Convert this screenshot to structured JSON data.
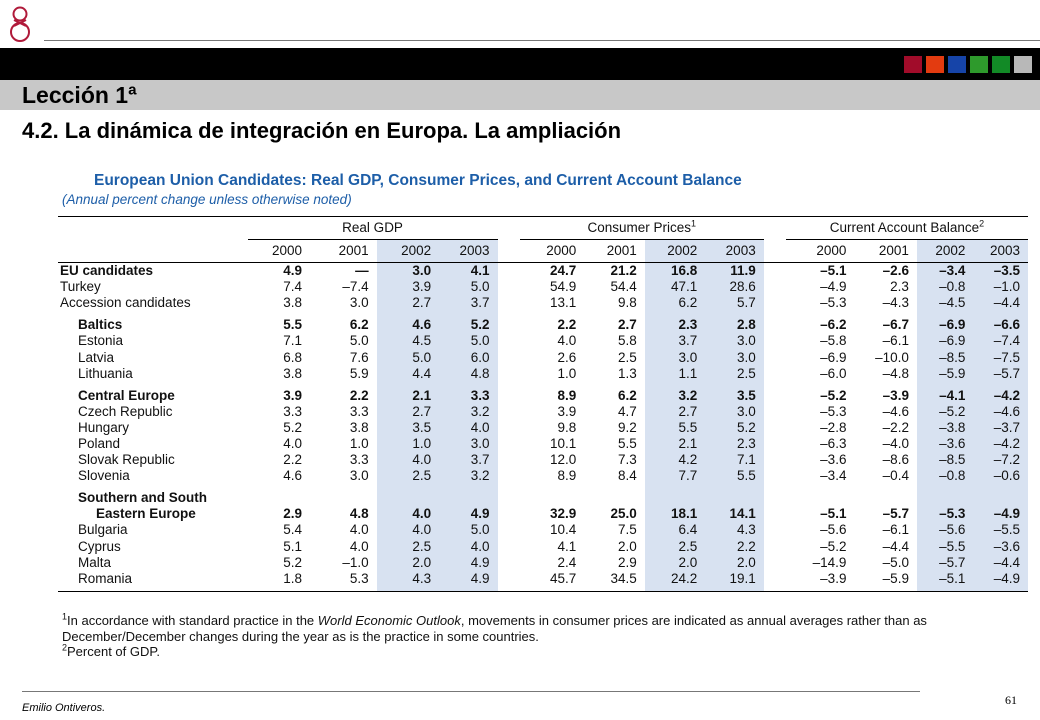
{
  "header": {
    "lesson": "Lección 1ª",
    "topic": "4.2. La dinámica de integración en Europa. La ampliación",
    "square_colors": [
      "#a10c2a",
      "#e33b10",
      "#1644a8",
      "#2e9a2c",
      "#128a26",
      "#b8b8b8"
    ]
  },
  "figure": {
    "title": "European Union Candidates: Real GDP, Consumer Prices, and Current Account Balance",
    "subtitle": "(Annual percent change unless otherwise noted)",
    "groups": [
      "Real GDP",
      "Consumer Prices",
      "Current Account Balance"
    ],
    "group_sup": [
      "",
      "1",
      "2"
    ],
    "years": [
      "2000",
      "2001",
      "2002",
      "2003"
    ],
    "rows": [
      {
        "label": "EU candidates",
        "bold": true,
        "gdp": [
          "4.9",
          "—",
          "3.0",
          "4.1"
        ],
        "cpi": [
          "24.7",
          "21.2",
          "16.8",
          "11.9"
        ],
        "ca": [
          "–5.1",
          "–2.6",
          "–3.4",
          "–3.5"
        ]
      },
      {
        "label": "Turkey",
        "gdp": [
          "7.4",
          "–7.4",
          "3.9",
          "5.0"
        ],
        "cpi": [
          "54.9",
          "54.4",
          "47.1",
          "28.6"
        ],
        "ca": [
          "–4.9",
          "2.3",
          "–0.8",
          "–1.0"
        ]
      },
      {
        "label": "Accession candidates",
        "gdp": [
          "3.8",
          "3.0",
          "2.7",
          "3.7"
        ],
        "cpi": [
          "13.1",
          "9.8",
          "6.2",
          "5.7"
        ],
        "ca": [
          "–5.3",
          "–4.3",
          "–4.5",
          "–4.4"
        ]
      },
      {
        "label": "Baltics",
        "bold": true,
        "gdp": [
          "5.5",
          "6.2",
          "4.6",
          "5.2"
        ],
        "cpi": [
          "2.2",
          "2.7",
          "2.3",
          "2.8"
        ],
        "ca": [
          "–6.2",
          "–6.7",
          "–6.9",
          "–6.6"
        ]
      },
      {
        "label": "Estonia",
        "gdp": [
          "7.1",
          "5.0",
          "4.5",
          "5.0"
        ],
        "cpi": [
          "4.0",
          "5.8",
          "3.7",
          "3.0"
        ],
        "ca": [
          "–5.8",
          "–6.1",
          "–6.9",
          "–7.4"
        ]
      },
      {
        "label": "Latvia",
        "gdp": [
          "6.8",
          "7.6",
          "5.0",
          "6.0"
        ],
        "cpi": [
          "2.6",
          "2.5",
          "3.0",
          "3.0"
        ],
        "ca": [
          "–6.9",
          "–10.0",
          "–8.5",
          "–7.5"
        ]
      },
      {
        "label": "Lithuania",
        "gdp": [
          "3.8",
          "5.9",
          "4.4",
          "4.8"
        ],
        "cpi": [
          "1.0",
          "1.3",
          "1.1",
          "2.5"
        ],
        "ca": [
          "–6.0",
          "–4.8",
          "–5.9",
          "–5.7"
        ]
      },
      {
        "label": "Central Europe",
        "bold": true,
        "gdp": [
          "3.9",
          "2.2",
          "2.1",
          "3.3"
        ],
        "cpi": [
          "8.9",
          "6.2",
          "3.2",
          "3.5"
        ],
        "ca": [
          "–5.2",
          "–3.9",
          "–4.1",
          "–4.2"
        ]
      },
      {
        "label": "Czech Republic",
        "gdp": [
          "3.3",
          "3.3",
          "2.7",
          "3.2"
        ],
        "cpi": [
          "3.9",
          "4.7",
          "2.7",
          "3.0"
        ],
        "ca": [
          "–5.3",
          "–4.6",
          "–5.2",
          "–4.6"
        ]
      },
      {
        "label": "Hungary",
        "gdp": [
          "5.2",
          "3.8",
          "3.5",
          "4.0"
        ],
        "cpi": [
          "9.8",
          "9.2",
          "5.5",
          "5.2"
        ],
        "ca": [
          "–2.8",
          "–2.2",
          "–3.8",
          "–3.7"
        ]
      },
      {
        "label": "Poland",
        "gdp": [
          "4.0",
          "1.0",
          "1.0",
          "3.0"
        ],
        "cpi": [
          "10.1",
          "5.5",
          "2.1",
          "2.3"
        ],
        "ca": [
          "–6.3",
          "–4.0",
          "–3.6",
          "–4.2"
        ]
      },
      {
        "label": "Slovak Republic",
        "gdp": [
          "2.2",
          "3.3",
          "4.0",
          "3.7"
        ],
        "cpi": [
          "12.0",
          "7.3",
          "4.2",
          "7.1"
        ],
        "ca": [
          "–3.6",
          "–8.6",
          "–8.5",
          "–7.2"
        ]
      },
      {
        "label": "Slovenia",
        "gdp": [
          "4.6",
          "3.0",
          "2.5",
          "3.2"
        ],
        "cpi": [
          "8.9",
          "8.4",
          "7.7",
          "5.5"
        ],
        "ca": [
          "–3.4",
          "–0.4",
          "–0.8",
          "–0.6"
        ]
      },
      {
        "label": "Southern and South",
        "bold": true,
        "gdp": [
          "",
          "",
          "",
          ""
        ],
        "cpi": [
          "",
          "",
          "",
          ""
        ],
        "ca": [
          "",
          "",
          "",
          ""
        ]
      },
      {
        "label": "Eastern Europe",
        "bold": true,
        "gdp": [
          "2.9",
          "4.8",
          "4.0",
          "4.9"
        ],
        "cpi": [
          "32.9",
          "25.0",
          "18.1",
          "14.1"
        ],
        "ca": [
          "–5.1",
          "–5.7",
          "–5.3",
          "–4.9"
        ]
      },
      {
        "label": "Bulgaria",
        "gdp": [
          "5.4",
          "4.0",
          "4.0",
          "5.0"
        ],
        "cpi": [
          "10.4",
          "7.5",
          "6.4",
          "4.3"
        ],
        "ca": [
          "–5.6",
          "–6.1",
          "–5.6",
          "–5.5"
        ]
      },
      {
        "label": "Cyprus",
        "gdp": [
          "5.1",
          "4.0",
          "2.5",
          "4.0"
        ],
        "cpi": [
          "4.1",
          "2.0",
          "2.5",
          "2.2"
        ],
        "ca": [
          "–5.2",
          "–4.4",
          "–5.5",
          "–3.6"
        ]
      },
      {
        "label": "Malta",
        "gdp": [
          "5.2",
          "–1.0",
          "2.0",
          "4.9"
        ],
        "cpi": [
          "2.4",
          "2.9",
          "2.0",
          "2.0"
        ],
        "ca": [
          "–14.9",
          "–5.0",
          "–5.7",
          "–4.4"
        ]
      },
      {
        "label": "Romania",
        "gdp": [
          "1.8",
          "5.3",
          "4.3",
          "4.9"
        ],
        "cpi": [
          "45.7",
          "34.5",
          "24.2",
          "19.1"
        ],
        "ca": [
          "–3.9",
          "–5.9",
          "–5.1",
          "–4.9"
        ]
      }
    ],
    "notes": {
      "n1_marker": "1",
      "n1_pre": "In accordance with standard practice in the ",
      "n1_italic": "World Economic Outlook",
      "n1_post": ", movements in consumer prices are indicated as annual averages rather than as December/December changes during the year as is the practice in some countries.",
      "n2_marker": "2",
      "n2_text": "Percent of GDP."
    }
  },
  "footer": {
    "author": "Emilio Ontiveros.",
    "page": "61"
  }
}
